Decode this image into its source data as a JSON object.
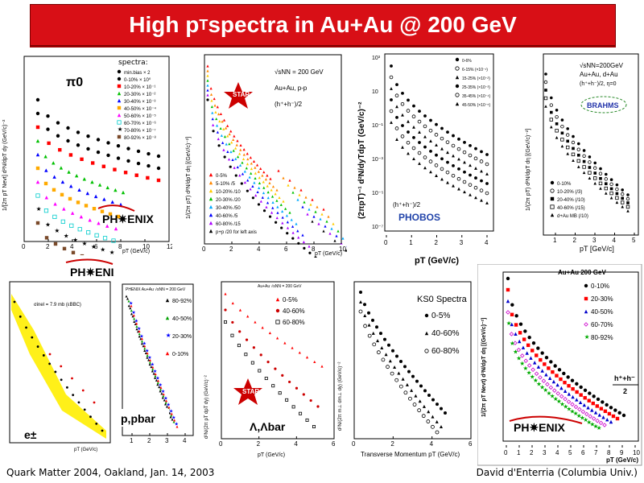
{
  "title": {
    "main": "High p",
    "sub": "T",
    "rest": " spectra in Au+Au @ 200 GeV"
  },
  "footer": {
    "left": "Quark Matter 2004, Oakland, Jan. 14, 2003",
    "right": "David d'Enterria (Columbia Univ.)"
  },
  "panels": {
    "p1": {
      "label": "π0",
      "logo": "PH✷ENIX",
      "ylabel": "1/[2π pT Nevt] d²N/dpT dy (GeV/c)⁻²",
      "xlabel": "pT (GeV/c)",
      "legend_title": "spectra:",
      "legend": [
        "min.bias × 2",
        "0-10% × 10⁰",
        "10-20% × 10⁻¹",
        "20-30% × 10⁻²",
        "30-40% × 10⁻³",
        "40-50% × 10⁻⁴",
        "50-60% × 10⁻⁵",
        "60-70% × 10⁻⁶",
        "70-80% × 10⁻⁷",
        "80-92% × 10⁻⁸"
      ],
      "xticks": [
        "0",
        "2",
        "4",
        "6",
        "8",
        "10",
        "12"
      ]
    },
    "p2": {
      "logo": "STAR",
      "header": [
        "√sNN = 200 GeV",
        "Au+Au, p-p",
        "(h⁺+h⁻)/2"
      ],
      "ylabel": "1/(2π pT) d²N/dpT dη [(GeV/c)⁻²]",
      "xlabel": "pT (GeV/c)",
      "legend": [
        "0-5%",
        "5-10% /5",
        "10-20% /10",
        "20-30% /20",
        "30-40% /50",
        "40-60% /5",
        "60-80% /15",
        "p+p /20 for left axis"
      ],
      "xticks": [
        "0",
        "2",
        "4",
        "6",
        "8",
        "10"
      ]
    },
    "p3": {
      "logo": "PHOBOS",
      "tag": "(h⁺+h⁻)/2",
      "ylabel": "(2πpT)⁻¹ d²N/dyTdpT (GeV/c)⁻²",
      "xlabel": "pT (GeV/c)",
      "legend": [
        "0-6%",
        "6-15% (×10⁻¹)",
        "15-25% (×10⁻²)",
        "25-35% (×10⁻³)",
        "35-45% (×10⁻⁴)",
        "45-50% (×10⁻⁵)"
      ],
      "xticks": [
        "0",
        "1",
        "2",
        "3",
        "4"
      ],
      "ylabel_ticks": [
        "10³",
        "10",
        "10⁻¹",
        "10⁻³",
        "10⁻⁵",
        "10⁻⁷"
      ]
    },
    "p4": {
      "logo": "BRAHMS",
      "header": [
        "√sNN=200GeV",
        "Au+Au, d+Au",
        "(h⁺+h⁻)/2, η=0"
      ],
      "ylabel": "1/(2π pT) d²N/dpT dη [(GeV/c)⁻²]",
      "xlabel": "pT [GeV/c]",
      "legend": [
        "0-10%",
        "10-20% (/3)",
        "20-40% (/10)",
        "40-60% (/15)",
        "d+Au MB (/10)"
      ],
      "xticks": [
        "1",
        "2",
        "3",
        "4",
        "5"
      ]
    },
    "p5": {
      "logo": "PH✷ENIX",
      "label": "e±",
      "xlabel": "pT (GeV/c)",
      "header": "σinel = 7.9 mb (εBBC)"
    },
    "p6": {
      "header": "PHENIX Au+Au √sNN = 200 GeV",
      "label": "p,pbar",
      "legend": [
        "80-92%",
        "40-50%",
        "20-30%",
        "0-10%"
      ],
      "xticks": [
        "1",
        "2",
        "3",
        "4"
      ]
    },
    "p7": {
      "logo": "STAR",
      "label": "Λ,Λbar",
      "header": "Au+Au √sNN = 200 GeV",
      "ylabel": "d²N/(2π pT dpT dy) (GeV/c)⁻²",
      "xlabel": "pT (GeV/c)",
      "legend": [
        "0-5%",
        "40-60%",
        "60-80%"
      ],
      "xticks": [
        "0",
        "2",
        "4",
        "6"
      ]
    },
    "p8": {
      "title": "KS0 Spectra",
      "ylabel": "d²N/(2π m⊥ dm⊥ dy) (GeV/c)⁻²",
      "xlabel": "Transverse Momentum pT (GeV/c)",
      "legend": [
        "0-5%",
        "40-60%",
        "60-80%"
      ],
      "xticks": [
        "0",
        "2",
        "4",
        "6"
      ]
    },
    "p9": {
      "header": "Au+Au 200 GeV",
      "logo": "PH✷ENIX",
      "ylabel": "1/(2π pT Nevt) d²N/dpT dη [(GeV/c)⁻²]",
      "xlabel": "pT (GeV/c)",
      "legend": [
        "0-10%",
        "20-30%",
        "40-50%",
        "60-70%",
        "80-92%"
      ],
      "fraction_top": "h⁺+h⁻",
      "fraction_bottom": "2",
      "xticks": [
        "0",
        "1",
        "2",
        "3",
        "4",
        "5",
        "6",
        "7",
        "8",
        "9",
        "10"
      ]
    }
  },
  "colors": {
    "title_bg": "#d80f16",
    "red": "#ff0000",
    "blue": "#0000cc",
    "green": "#00a000",
    "magenta": "#ff00ff",
    "yellow": "#ffee00"
  }
}
